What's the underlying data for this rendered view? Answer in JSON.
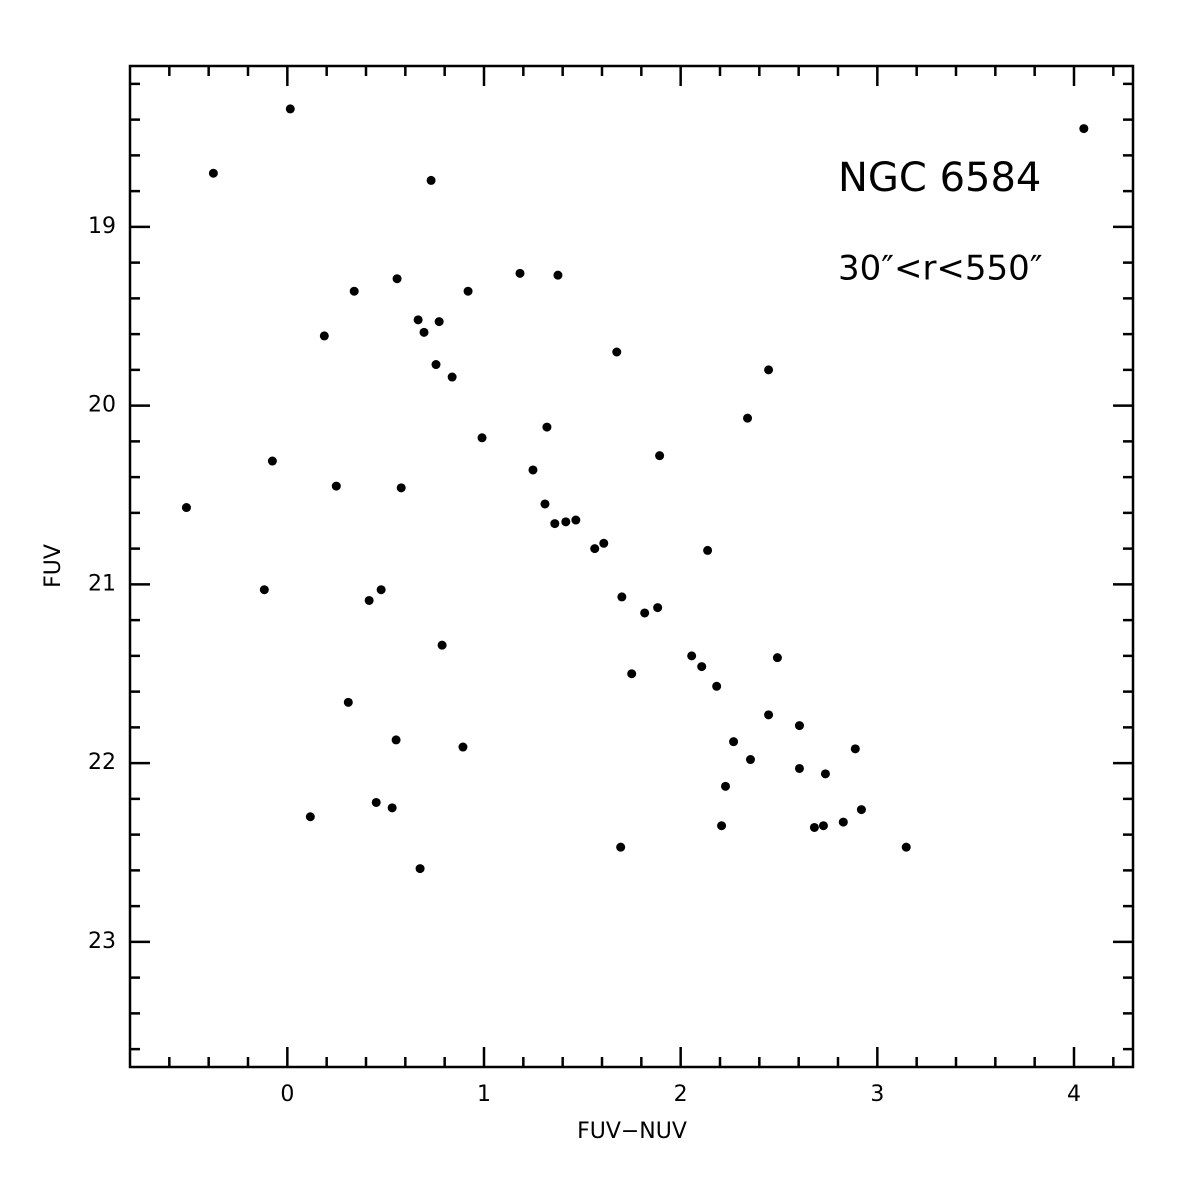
{
  "chart_data": {
    "type": "scatter",
    "xlabel": "FUV−NUV",
    "ylabel": "FUV",
    "annotations": [
      "NGC 6584",
      "30″<r<550″"
    ],
    "color": "#000000",
    "xlim": [
      -0.8,
      4.3
    ],
    "ylim": [
      23.7,
      18.1
    ],
    "xticks": [
      0,
      1,
      2,
      3,
      4
    ],
    "yticks": [
      19,
      20,
      21,
      22,
      23
    ],
    "xminorticks": [
      -0.6,
      -0.4,
      -0.2,
      0.2,
      0.4,
      0.6,
      0.8,
      1.2,
      1.4,
      1.6,
      1.8,
      2.2,
      2.4,
      2.6,
      2.8,
      3.2,
      3.4,
      3.6,
      3.8,
      4.2
    ],
    "yminorticks": [
      18.2,
      18.4,
      18.6,
      18.8,
      19.2,
      19.4,
      19.6,
      19.8,
      20.2,
      20.4,
      20.6,
      20.8,
      21.2,
      21.4,
      21.6,
      21.8,
      22.2,
      22.4,
      22.6,
      22.8,
      23.2,
      23.4,
      23.6
    ],
    "x": [
      0.015,
      -0.376,
      0.731,
      4.05,
      0.558,
      1.183,
      1.376,
      0.34,
      0.919,
      0.188,
      0.665,
      0.772,
      0.695,
      1.675,
      0.756,
      0.838,
      2.447,
      2.34,
      0.99,
      1.32,
      -0.076,
      1.893,
      0.249,
      0.579,
      1.249,
      -0.513,
      1.31,
      1.36,
      1.416,
      1.467,
      1.563,
      1.609,
      2.137,
      -0.117,
      0.477,
      0.416,
      1.701,
      1.817,
      1.883,
      0.787,
      2.056,
      2.107,
      1.751,
      2.492,
      2.183,
      0.31,
      2.447,
      2.604,
      0.553,
      0.893,
      2.269,
      2.888,
      2.355,
      2.604,
      2.736,
      2.228,
      0.452,
      0.533,
      0.117,
      2.919,
      2.827,
      2.726,
      2.68,
      2.208,
      1.695,
      3.147,
      0.675
    ],
    "values": [
      18.34,
      18.7,
      18.74,
      18.45,
      19.29,
      19.26,
      19.27,
      19.36,
      19.36,
      19.61,
      19.52,
      19.53,
      19.59,
      19.7,
      19.77,
      19.84,
      19.8,
      20.07,
      20.18,
      20.12,
      20.31,
      20.28,
      20.45,
      20.46,
      20.36,
      20.57,
      20.55,
      20.66,
      20.65,
      20.64,
      20.8,
      20.77,
      20.81,
      21.03,
      21.03,
      21.09,
      21.07,
      21.16,
      21.13,
      21.34,
      21.4,
      21.46,
      21.5,
      21.41,
      21.57,
      21.66,
      21.73,
      21.79,
      21.87,
      21.91,
      21.88,
      21.92,
      21.98,
      22.03,
      22.06,
      22.13,
      22.22,
      22.25,
      22.3,
      22.26,
      22.33,
      22.35,
      22.36,
      22.35,
      22.47,
      22.47,
      22.59
    ]
  }
}
